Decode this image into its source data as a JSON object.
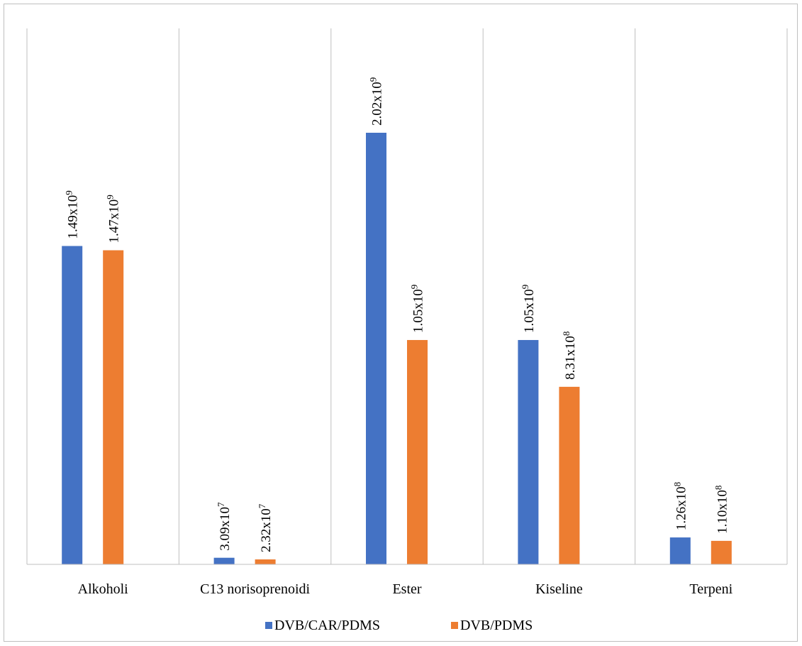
{
  "chart_data": {
    "type": "bar",
    "categories": [
      "Alkoholi",
      "C13 norisoprenoidi",
      "Ester",
      "Kiseline",
      "Terpeni"
    ],
    "series": [
      {
        "name": "DVB/CAR/PDMS",
        "color": "#4472c4",
        "values": [
          1490000000,
          30900000,
          2020000000,
          1050000000,
          126000000
        ],
        "labels": [
          {
            "mantissa": "1.49x10",
            "exp": "9"
          },
          {
            "mantissa": "3.09x10",
            "exp": "7"
          },
          {
            "mantissa": "2.02x10",
            "exp": "9"
          },
          {
            "mantissa": "1.05x10",
            "exp": "9"
          },
          {
            "mantissa": "1.26x10",
            "exp": "8"
          }
        ]
      },
      {
        "name": "DVB/PDMS",
        "color": "#ed7d31",
        "values": [
          1470000000,
          23200000,
          1050000000,
          831000000,
          110000000
        ],
        "labels": [
          {
            "mantissa": "1.47x10",
            "exp": "9"
          },
          {
            "mantissa": "2.32x10",
            "exp": "7"
          },
          {
            "mantissa": "1.05x10",
            "exp": "9"
          },
          {
            "mantissa": "8.31x10",
            "exp": "8"
          },
          {
            "mantissa": "1.10x10",
            "exp": "8"
          }
        ]
      }
    ],
    "ylim": [
      0,
      2700000000
    ],
    "grid": "vertical-category-separators",
    "legend_position": "bottom",
    "title": "",
    "xlabel": "",
    "ylabel": ""
  }
}
